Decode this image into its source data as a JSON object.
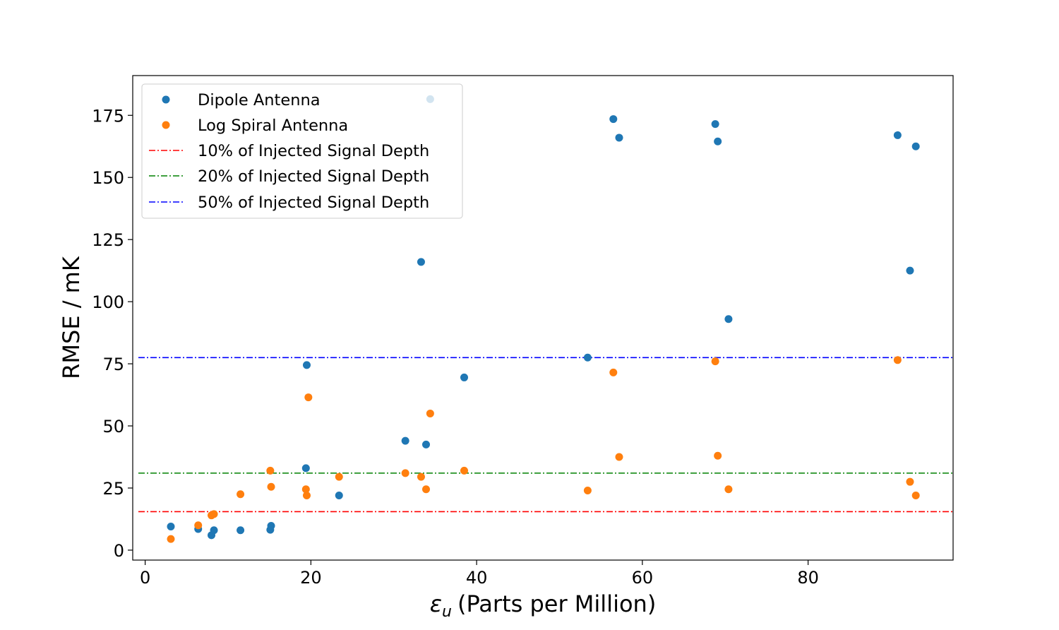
{
  "chart_data": {
    "type": "scatter",
    "title": "",
    "xlabel": "(Parts per Million)",
    "xlabel_symbol": "ε",
    "xlabel_subscript": "u",
    "ylabel": "RMSE / mK",
    "xlim": [
      -1.5,
      97.5
    ],
    "ylim": [
      -4,
      191
    ],
    "xticks": [
      0,
      20,
      40,
      60,
      80
    ],
    "yticks": [
      0,
      25,
      50,
      75,
      100,
      125,
      150,
      175
    ],
    "grid": false,
    "legend_position": "top-left",
    "series": [
      {
        "name": "Dipole Antenna",
        "color": "#1f77b4",
        "x": [
          3.1,
          6.4,
          8.0,
          8.3,
          11.5,
          15.1,
          15.2,
          19.4,
          19.5,
          23.4,
          31.4,
          33.3,
          33.9,
          34.4,
          38.5,
          53.4,
          56.5,
          57.2,
          68.8,
          69.1,
          70.4,
          90.8,
          92.3,
          93.0
        ],
        "y": [
          9.5,
          8.5,
          6.0,
          8.0,
          8.0,
          8.2,
          9.8,
          33.0,
          74.5,
          22.0,
          44.0,
          116.0,
          42.5,
          181.5,
          69.5,
          77.5,
          173.5,
          166.0,
          171.5,
          164.5,
          93.0,
          167.0,
          112.5,
          162.5
        ]
      },
      {
        "name": "Log Spiral Antenna",
        "color": "#ff7f0e",
        "x": [
          3.1,
          6.4,
          8.0,
          8.3,
          11.5,
          15.1,
          15.2,
          19.4,
          19.5,
          19.7,
          23.4,
          31.4,
          33.3,
          33.9,
          34.4,
          38.5,
          53.4,
          56.5,
          57.2,
          68.8,
          69.1,
          70.4,
          90.8,
          92.3,
          93.0
        ],
        "y": [
          4.5,
          10.0,
          14.0,
          14.5,
          22.5,
          32.0,
          25.5,
          24.5,
          22.0,
          61.5,
          29.5,
          31.0,
          29.5,
          24.5,
          55.0,
          32.0,
          24.0,
          71.5,
          37.5,
          76.0,
          38.0,
          24.5,
          76.5,
          27.5,
          22.0
        ]
      }
    ],
    "hlines": [
      {
        "name": "10% of Injected Signal Depth",
        "y": 15.5,
        "color": "#ff0000"
      },
      {
        "name": "20% of Injected Signal Depth",
        "y": 31.0,
        "color": "#008000"
      },
      {
        "name": "50% of Injected Signal Depth",
        "y": 77.5,
        "color": "#0000ff"
      }
    ]
  }
}
